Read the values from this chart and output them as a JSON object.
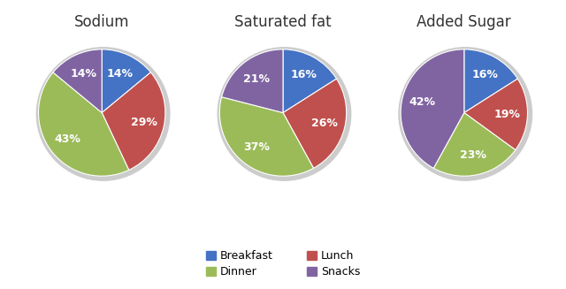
{
  "charts": [
    {
      "title": "Sodium",
      "labels": [
        "Breakfast",
        "Lunch",
        "Dinner",
        "Snacks"
      ],
      "values": [
        14,
        29,
        43,
        14
      ],
      "startangle": 90,
      "colors": [
        "#4472C4",
        "#C0504D",
        "#9BBB59",
        "#8064A2"
      ]
    },
    {
      "title": "Saturated fat",
      "labels": [
        "Breakfast",
        "Lunch",
        "Dinner",
        "Snacks"
      ],
      "values": [
        16,
        26,
        37,
        21
      ],
      "startangle": 90,
      "colors": [
        "#4472C4",
        "#C0504D",
        "#9BBB59",
        "#8064A2"
      ]
    },
    {
      "title": "Added Sugar",
      "labels": [
        "Breakfast",
        "Lunch",
        "Dinner",
        "Snacks"
      ],
      "values": [
        16,
        19,
        23,
        42
      ],
      "startangle": 90,
      "colors": [
        "#4472C4",
        "#C0504D",
        "#9BBB59",
        "#8064A2"
      ]
    }
  ],
  "legend_order": [
    0,
    2,
    1,
    3
  ],
  "legend_labels": [
    "Breakfast",
    "Lunch",
    "Dinner",
    "Snacks"
  ],
  "legend_colors": [
    "#4472C4",
    "#C0504D",
    "#9BBB59",
    "#8064A2"
  ],
  "text_color": "white",
  "fontsize_title": 12,
  "fontsize_pct": 9,
  "background_color": "#FFFFFF"
}
